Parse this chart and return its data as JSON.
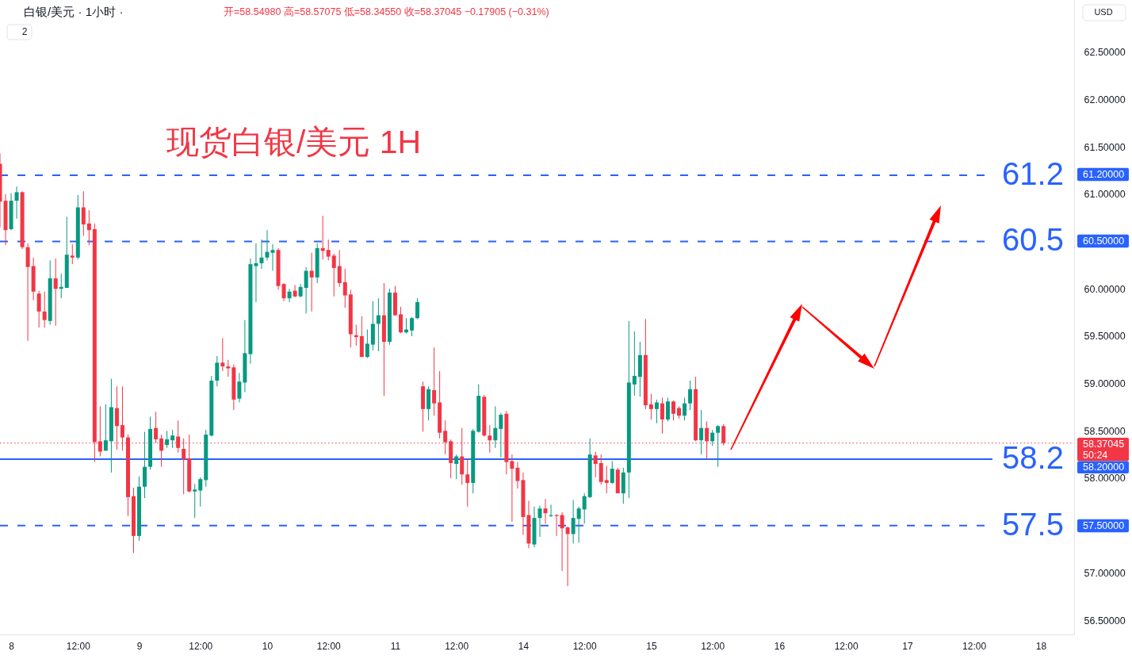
{
  "chart_data": {
    "type": "candlestick",
    "title": "白银/美元 · 1小时 ·",
    "subtitle": "现货白银/美元 1H",
    "categories": [
      null,
      null,
      "8",
      null,
      null,
      null,
      null,
      null,
      null,
      null,
      null,
      null,
      null,
      null,
      "12:00",
      null,
      null,
      null,
      null,
      null,
      null,
      null,
      null,
      null,
      null,
      "9",
      null,
      null,
      null,
      null,
      null,
      null,
      null,
      null,
      null,
      null,
      "12:00",
      null,
      null,
      null,
      null,
      null,
      null,
      null,
      null,
      null,
      null,
      null,
      "10",
      null,
      null,
      null,
      null,
      null,
      null,
      null,
      null,
      null,
      null,
      "12:00",
      null,
      null,
      null,
      null,
      null,
      null,
      null,
      null,
      null,
      null,
      null,
      "11",
      null,
      null,
      null,
      null,
      null,
      null,
      null,
      null,
      null,
      null,
      "12:00",
      null,
      null,
      null,
      null,
      null,
      null,
      null,
      null,
      null,
      null,
      null,
      "14",
      null,
      null,
      null,
      null,
      null,
      null,
      null,
      null,
      null,
      null,
      "12:00",
      null,
      null,
      null,
      null,
      null,
      null,
      null,
      null,
      null,
      null,
      null,
      "15",
      null,
      null,
      null,
      null,
      null,
      null,
      null,
      null,
      null,
      null,
      "12:00",
      null,
      null,
      null,
      null,
      null,
      null,
      null,
      null,
      null,
      null,
      null,
      "16",
      null,
      null,
      null,
      null,
      null,
      null,
      null,
      null,
      null,
      null,
      null,
      "12:00",
      null,
      null,
      null,
      null,
      null,
      null,
      null,
      null,
      null,
      null,
      "17",
      null,
      null,
      null,
      null,
      null,
      null,
      null,
      null,
      null,
      null,
      null,
      "12:00",
      null,
      null,
      null,
      null,
      null,
      null,
      null,
      null,
      null,
      null,
      null,
      "18",
      null,
      null,
      null,
      null,
      null,
      null
    ],
    "ohlc": [
      [
        61.32,
        61.43,
        60.65,
        60.92
      ],
      [
        60.93,
        61.0,
        60.46,
        60.62
      ],
      [
        60.63,
        61.01,
        60.62,
        60.93
      ],
      [
        60.93,
        61.08,
        60.74,
        61.02
      ],
      [
        61.02,
        61.03,
        60.42,
        60.44
      ],
      [
        60.44,
        60.48,
        59.45,
        60.23
      ],
      [
        60.24,
        60.33,
        59.88,
        59.97
      ],
      [
        59.95,
        59.98,
        59.59,
        59.76
      ],
      [
        59.76,
        59.97,
        59.59,
        59.67
      ],
      [
        59.66,
        60.3,
        59.62,
        60.11
      ],
      [
        60.11,
        60.32,
        59.61,
        60.0
      ],
      [
        60.0,
        60.16,
        59.9,
        60.02
      ],
      [
        60.01,
        60.76,
        60.01,
        60.36
      ],
      [
        60.35,
        60.47,
        60.26,
        60.33
      ],
      [
        60.33,
        60.99,
        60.31,
        60.86
      ],
      [
        60.86,
        61.03,
        60.56,
        60.68
      ],
      [
        60.69,
        60.83,
        60.46,
        60.62
      ],
      [
        60.63,
        60.69,
        58.17,
        58.38
      ],
      [
        58.39,
        58.76,
        58.23,
        58.28
      ],
      [
        58.29,
        58.78,
        58.29,
        58.4
      ],
      [
        58.39,
        59.05,
        58.06,
        58.75
      ],
      [
        58.74,
        58.97,
        58.3,
        58.55
      ],
      [
        58.56,
        58.97,
        58.29,
        58.43
      ],
      [
        58.43,
        58.46,
        57.6,
        57.8
      ],
      [
        57.81,
        57.9,
        57.21,
        57.39
      ],
      [
        57.39,
        58.02,
        57.34,
        57.91
      ],
      [
        57.91,
        58.49,
        57.79,
        58.12
      ],
      [
        58.12,
        58.65,
        58.09,
        58.52
      ],
      [
        58.53,
        58.7,
        58.37,
        58.41
      ],
      [
        58.42,
        58.46,
        58.12,
        58.29
      ],
      [
        58.35,
        58.5,
        58.32,
        58.41
      ],
      [
        58.4,
        58.51,
        58.32,
        58.45
      ],
      [
        58.44,
        58.61,
        58.27,
        58.32
      ],
      [
        58.31,
        58.42,
        57.83,
        58.2
      ],
      [
        58.21,
        58.46,
        57.85,
        57.86
      ],
      [
        57.86,
        57.94,
        57.58,
        57.88
      ],
      [
        57.87,
        58.01,
        57.7,
        57.99
      ],
      [
        57.98,
        58.51,
        57.91,
        58.46
      ],
      [
        58.45,
        59.08,
        58.44,
        59.03
      ],
      [
        59.03,
        59.29,
        58.97,
        59.22
      ],
      [
        59.22,
        59.48,
        59.13,
        59.18
      ],
      [
        59.18,
        59.25,
        59.07,
        59.16
      ],
      [
        59.17,
        59.2,
        58.72,
        58.83
      ],
      [
        58.84,
        59.11,
        58.8,
        59.02
      ],
      [
        59.01,
        59.67,
        58.91,
        59.32
      ],
      [
        59.31,
        60.32,
        59.21,
        60.26
      ],
      [
        60.24,
        60.48,
        59.86,
        60.27
      ],
      [
        60.27,
        60.52,
        60.21,
        60.33
      ],
      [
        60.33,
        60.62,
        60.3,
        60.39
      ],
      [
        60.38,
        60.47,
        60.19,
        60.41
      ],
      [
        60.41,
        60.43,
        59.99,
        60.03
      ],
      [
        60.05,
        60.06,
        59.87,
        59.9
      ],
      [
        59.9,
        60.0,
        59.86,
        59.97
      ],
      [
        59.98,
        60.04,
        59.91,
        59.92
      ],
      [
        59.92,
        60.05,
        59.91,
        60.02
      ],
      [
        60.01,
        60.23,
        59.74,
        60.19
      ],
      [
        60.19,
        60.38,
        59.76,
        60.12
      ],
      [
        60.12,
        60.48,
        60.06,
        60.43
      ],
      [
        60.43,
        60.77,
        60.31,
        60.4
      ],
      [
        60.41,
        60.52,
        60.3,
        60.34
      ],
      [
        60.35,
        60.37,
        59.92,
        60.22
      ],
      [
        60.24,
        60.41,
        60.02,
        60.06
      ],
      [
        60.07,
        60.21,
        59.8,
        59.93
      ],
      [
        59.94,
        59.99,
        59.38,
        59.52
      ],
      [
        59.51,
        59.62,
        59.4,
        59.49
      ],
      [
        59.5,
        59.71,
        59.28,
        59.28
      ],
      [
        59.28,
        59.57,
        59.27,
        59.42
      ],
      [
        59.41,
        59.87,
        59.35,
        59.63
      ],
      [
        59.63,
        59.9,
        59.34,
        59.72
      ],
      [
        59.72,
        60.06,
        58.87,
        59.44
      ],
      [
        59.44,
        60.0,
        59.41,
        59.96
      ],
      [
        59.96,
        60.03,
        59.72,
        59.72
      ],
      [
        59.73,
        59.81,
        59.53,
        59.54
      ],
      [
        59.54,
        59.69,
        59.53,
        59.57
      ],
      [
        59.56,
        59.7,
        59.5,
        59.69
      ],
      [
        59.69,
        59.9,
        59.68,
        59.86
      ],
      [
        58.97,
        59.02,
        58.49,
        58.73
      ],
      [
        58.73,
        58.97,
        58.61,
        58.94
      ],
      [
        58.93,
        59.38,
        58.66,
        58.79
      ],
      [
        58.8,
        59.13,
        58.42,
        58.48
      ],
      [
        58.5,
        58.61,
        58.25,
        58.38
      ],
      [
        58.39,
        58.41,
        58.0,
        58.16
      ],
      [
        58.15,
        58.25,
        57.99,
        58.23
      ],
      [
        58.23,
        58.53,
        57.93,
        58.04
      ],
      [
        58.04,
        58.2,
        57.7,
        57.95
      ],
      [
        57.95,
        58.52,
        57.84,
        58.5
      ],
      [
        58.49,
        58.99,
        58.48,
        58.87
      ],
      [
        58.86,
        58.88,
        58.44,
        58.45
      ],
      [
        58.45,
        58.56,
        58.27,
        58.4
      ],
      [
        58.4,
        58.76,
        58.32,
        58.53
      ],
      [
        58.52,
        58.69,
        58.22,
        58.67
      ],
      [
        58.68,
        58.71,
        58.04,
        58.17
      ],
      [
        58.18,
        58.25,
        57.54,
        58.1
      ],
      [
        58.11,
        58.17,
        57.89,
        57.97
      ],
      [
        57.98,
        58.06,
        57.4,
        57.59
      ],
      [
        57.61,
        57.76,
        57.26,
        57.31
      ],
      [
        57.3,
        57.7,
        57.27,
        57.58
      ],
      [
        57.58,
        57.71,
        57.38,
        57.68
      ],
      [
        57.68,
        57.78,
        57.52,
        57.63
      ],
      [
        57.6,
        57.72,
        57.59,
        57.61
      ],
      [
        57.61,
        57.62,
        57.39,
        57.6
      ],
      [
        57.61,
        57.64,
        57.02,
        57.47
      ],
      [
        57.48,
        57.49,
        56.86,
        57.41
      ],
      [
        57.41,
        57.77,
        57.31,
        57.58
      ],
      [
        57.57,
        57.7,
        57.32,
        57.68
      ],
      [
        57.67,
        57.84,
        57.52,
        57.81
      ],
      [
        57.8,
        58.42,
        57.79,
        58.25
      ],
      [
        58.24,
        58.28,
        58.01,
        58.15
      ],
      [
        58.16,
        58.25,
        57.93,
        57.96
      ],
      [
        57.98,
        58.13,
        57.84,
        57.95
      ],
      [
        57.95,
        58.18,
        57.94,
        58.1
      ],
      [
        58.09,
        58.11,
        57.84,
        57.84
      ],
      [
        57.84,
        58.11,
        57.73,
        58.06
      ],
      [
        58.06,
        59.66,
        57.79,
        59.01
      ],
      [
        58.99,
        59.55,
        58.87,
        59.08
      ],
      [
        59.07,
        59.44,
        58.86,
        59.3
      ],
      [
        59.3,
        59.68,
        58.73,
        58.77
      ],
      [
        58.78,
        58.89,
        58.62,
        58.73
      ],
      [
        58.73,
        58.83,
        58.58,
        58.8
      ],
      [
        58.79,
        58.85,
        58.47,
        58.62
      ],
      [
        58.62,
        58.85,
        58.6,
        58.81
      ],
      [
        58.81,
        58.82,
        58.61,
        58.68
      ],
      [
        58.74,
        58.76,
        58.63,
        58.66
      ],
      [
        58.66,
        58.85,
        58.61,
        58.79
      ],
      [
        58.79,
        59.03,
        58.72,
        58.94
      ],
      [
        58.94,
        59.07,
        58.39,
        58.4
      ],
      [
        58.4,
        58.72,
        58.25,
        58.53
      ],
      [
        58.53,
        58.6,
        58.2,
        58.39
      ],
      [
        58.39,
        58.51,
        58.34,
        58.48
      ],
      [
        58.48,
        58.56,
        58.12,
        58.55
      ],
      [
        58.5498,
        58.57075,
        58.3455,
        58.37045
      ],
      null,
      null,
      null,
      null,
      null,
      null,
      null,
      null,
      null,
      null,
      null,
      null,
      null,
      null,
      null,
      null,
      null,
      null,
      null,
      null,
      null,
      null,
      null,
      null,
      null,
      null,
      null,
      null,
      null,
      null,
      null,
      null,
      null,
      null,
      null,
      null,
      null,
      null,
      null,
      null,
      null,
      null,
      null,
      null,
      null,
      null,
      null,
      null,
      null,
      null,
      null,
      null,
      null,
      null,
      null,
      null,
      null,
      null,
      null,
      null,
      null,
      null,
      null
    ],
    "colors": [
      "#f23645",
      "#f23645",
      "#089981",
      "#089981",
      "#f23645",
      "#f23645",
      "#f23645",
      "#f23645",
      "#f23645",
      "#089981",
      "#f23645",
      "#089981",
      "#089981",
      "#f23645",
      "#089981",
      "#f23645",
      "#f23645",
      "#f23645",
      "#f23645",
      "#089981",
      "#089981",
      "#f23645",
      "#f23645",
      "#f23645",
      "#f23645",
      "#089981",
      "#089981",
      "#089981",
      "#f23645",
      "#f23645",
      "#089981",
      "#089981",
      "#f23645",
      "#f23645",
      "#f23645",
      "#089981",
      "#089981",
      "#089981",
      "#089981",
      "#089981",
      "#f23645",
      "#f23645",
      "#f23645",
      "#089981",
      "#089981",
      "#089981",
      "#089981",
      "#089981",
      "#089981",
      "#089981",
      "#f23645",
      "#f23645",
      "#089981",
      "#f23645",
      "#089981",
      "#089981",
      "#f23645",
      "#089981",
      "#f23645",
      "#f23645",
      "#f23645",
      "#f23645",
      "#f23645",
      "#f23645",
      "#f23645",
      "#f23645",
      "#089981",
      "#089981",
      "#089981",
      "#f23645",
      "#089981",
      "#f23645",
      "#f23645",
      "#089981",
      "#089981",
      "#089981",
      "#f23645",
      "#089981",
      "#f23645",
      "#f23645",
      "#f23645",
      "#f23645",
      "#089981",
      "#f23645",
      "#f23645",
      "#089981",
      "#089981",
      "#f23645",
      "#f23645",
      "#089981",
      "#089981",
      "#f23645",
      "#f23645",
      "#f23645",
      "#f23645",
      "#f23645",
      "#089981",
      "#089981",
      "#f23645",
      "#089981",
      "#f23645",
      "#f23645",
      "#f23645",
      "#089981",
      "#089981",
      "#089981",
      "#089981",
      "#f23645",
      "#f23645",
      "#f23645",
      "#089981",
      "#f23645",
      "#089981",
      "#089981",
      "#089981",
      "#089981",
      "#f23645",
      "#f23645",
      "#089981",
      "#f23645",
      "#089981",
      "#f23645",
      "#f23645",
      "#089981",
      "#089981",
      "#f23645",
      "#089981",
      "#f23645",
      "#089981",
      "#089981",
      "#f23645",
      null,
      null,
      null,
      null,
      null,
      null,
      null,
      null,
      null,
      null,
      null,
      null,
      null,
      null,
      null,
      null,
      null,
      null,
      null,
      null,
      null,
      null,
      null,
      null,
      null,
      null,
      null,
      null,
      null,
      null,
      null,
      null,
      null,
      null,
      null,
      null,
      null,
      null,
      null,
      null,
      null,
      null,
      null,
      null,
      null,
      null,
      null,
      null,
      null,
      null,
      null,
      null,
      null,
      null,
      null,
      null,
      null,
      null,
      null,
      null,
      null,
      null,
      null
    ],
    "ylim": [
      56.35,
      63.05
    ],
    "yticks": [
      {
        "value": 56.5,
        "label": "56.50000"
      },
      {
        "value": 57.0,
        "label": "57.00000"
      },
      {
        "value": 58.0,
        "label": "58.00000"
      },
      {
        "value": 58.5,
        "label": "58.50000"
      },
      {
        "value": 59.0,
        "label": "59.00000"
      },
      {
        "value": 59.5,
        "label": "59.50000"
      },
      {
        "value": 60.0,
        "label": "60.00000"
      },
      {
        "value": 61.0,
        "label": "61.00000"
      },
      {
        "value": 61.5,
        "label": "61.50000"
      },
      {
        "value": 62.0,
        "label": "62.00000"
      },
      {
        "value": 62.5,
        "label": "62.50000"
      }
    ],
    "ref_lines": [
      {
        "axis": "y",
        "value": 61.2,
        "label": "61.2",
        "color": "#2962ff",
        "line_style": "dashed"
      },
      {
        "axis": "y",
        "value": 60.5,
        "label": "60.5",
        "color": "#2962ff",
        "line_style": "dashed"
      },
      {
        "axis": "y",
        "value": 58.2,
        "label": "58.2",
        "color": "#2962ff",
        "line_style": "solid"
      },
      {
        "axis": "y",
        "value": 57.5,
        "label": "57.5",
        "color": "#2962ff",
        "line_style": "dashed"
      },
      {
        "axis": "y",
        "value": 58.37045,
        "color": "#f23645",
        "line_style": "dotted"
      }
    ],
    "annotations": [
      "开=58.54980 高=58.57075 低=58.34550 收=58.37045 −0.17905 (−0.31%)",
      "USD",
      "2",
      "61.20000",
      "60.50000",
      "58.37045",
      "50:24",
      "58.20000",
      "57.50000"
    ],
    "grid": false
  }
}
